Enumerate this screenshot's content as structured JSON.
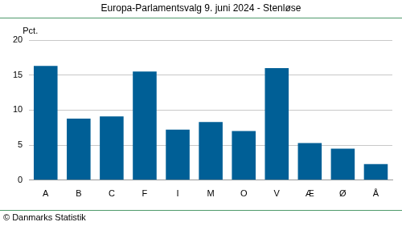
{
  "chart_data": {
    "type": "bar",
    "title": "Europa-Parlamentsvalg 9. juni 2024 - Stenløse",
    "ylabel": "Pct.",
    "source": "© Danmarks Statistik",
    "categories": [
      "A",
      "B",
      "C",
      "F",
      "I",
      "M",
      "O",
      "V",
      "Æ",
      "Ø",
      "Å"
    ],
    "values": [
      16.3,
      8.8,
      9.1,
      15.5,
      7.2,
      8.3,
      7.0,
      16.0,
      5.3,
      4.5,
      2.3
    ],
    "color": "#005f96",
    "ylim": [
      0,
      20
    ],
    "yticks": [
      0,
      5,
      10,
      15,
      20
    ],
    "grid": true
  }
}
